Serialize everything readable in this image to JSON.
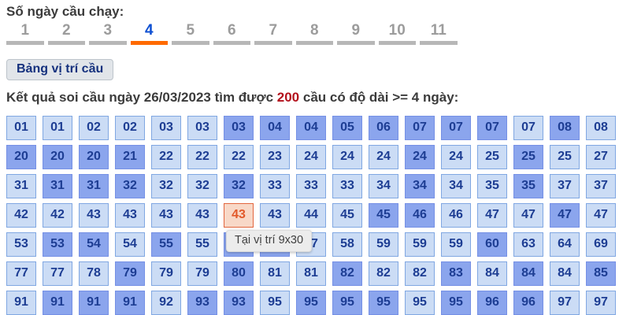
{
  "header": {
    "label": "Số ngày cầu chạy:"
  },
  "tabs": {
    "items": [
      "1",
      "2",
      "3",
      "4",
      "5",
      "6",
      "7",
      "8",
      "9",
      "10",
      "11"
    ],
    "active": "4",
    "active_text_color": "#0d4fd2",
    "active_underline_color": "#ff6a00",
    "inactive_text_color": "#9c9c9c",
    "inactive_underline_color": "#b7b7b7"
  },
  "toolbar": {
    "position_table_button_label": "Bảng vị trí cầu"
  },
  "result_line": {
    "prefix": "Kết quả soi cầu ngày 26/03/2023 tìm được ",
    "count": "200",
    "suffix": " cầu có độ dài >= 4 ngày:",
    "count_color": "#b3111c"
  },
  "tooltip": {
    "text": "Tại vị trí 9x30",
    "anchor_value": "43",
    "anchor_position": "9x30"
  },
  "colors": {
    "cell_light_bg": "#cbdcf5",
    "cell_light_border": "#80a7e2",
    "cell_dark_bg": "#8ba5ed",
    "cell_dark_border": "#7590e5",
    "cell_text": "#1d3d93",
    "cell_highlight_bg": "#f8d8c7",
    "cell_highlight_border": "#e2663e",
    "cell_highlight_text": "#e2592a"
  },
  "grid": {
    "rows": [
      [
        {
          "v": "01",
          "s": "l"
        },
        {
          "v": "01",
          "s": "l"
        },
        {
          "v": "02",
          "s": "l"
        },
        {
          "v": "02",
          "s": "l"
        },
        {
          "v": "03",
          "s": "l"
        },
        {
          "v": "03",
          "s": "l"
        },
        {
          "v": "03",
          "s": "d"
        },
        {
          "v": "04",
          "s": "d"
        },
        {
          "v": "04",
          "s": "d"
        },
        {
          "v": "05",
          "s": "d"
        },
        {
          "v": "06",
          "s": "d"
        },
        {
          "v": "07",
          "s": "d"
        },
        {
          "v": "07",
          "s": "d"
        },
        {
          "v": "07",
          "s": "d"
        },
        {
          "v": "07",
          "s": "l"
        },
        {
          "v": "08",
          "s": "d"
        },
        {
          "v": "08",
          "s": "l"
        }
      ],
      [
        {
          "v": "20",
          "s": "d"
        },
        {
          "v": "20",
          "s": "d"
        },
        {
          "v": "20",
          "s": "d"
        },
        {
          "v": "21",
          "s": "d"
        },
        {
          "v": "22",
          "s": "l"
        },
        {
          "v": "22",
          "s": "l"
        },
        {
          "v": "22",
          "s": "l"
        },
        {
          "v": "23",
          "s": "l"
        },
        {
          "v": "24",
          "s": "l"
        },
        {
          "v": "24",
          "s": "l"
        },
        {
          "v": "24",
          "s": "l"
        },
        {
          "v": "24",
          "s": "d"
        },
        {
          "v": "24",
          "s": "l"
        },
        {
          "v": "25",
          "s": "l"
        },
        {
          "v": "25",
          "s": "d"
        },
        {
          "v": "25",
          "s": "l"
        },
        {
          "v": "27",
          "s": "l"
        }
      ],
      [
        {
          "v": "31",
          "s": "l"
        },
        {
          "v": "31",
          "s": "d"
        },
        {
          "v": "31",
          "s": "d"
        },
        {
          "v": "32",
          "s": "d"
        },
        {
          "v": "32",
          "s": "l"
        },
        {
          "v": "32",
          "s": "l"
        },
        {
          "v": "32",
          "s": "d"
        },
        {
          "v": "33",
          "s": "l"
        },
        {
          "v": "33",
          "s": "l"
        },
        {
          "v": "33",
          "s": "l"
        },
        {
          "v": "34",
          "s": "l"
        },
        {
          "v": "34",
          "s": "d"
        },
        {
          "v": "34",
          "s": "l"
        },
        {
          "v": "35",
          "s": "l"
        },
        {
          "v": "35",
          "s": "d"
        },
        {
          "v": "37",
          "s": "l"
        },
        {
          "v": "37",
          "s": "l"
        }
      ],
      [
        {
          "v": "42",
          "s": "l"
        },
        {
          "v": "42",
          "s": "l"
        },
        {
          "v": "43",
          "s": "l"
        },
        {
          "v": "43",
          "s": "l"
        },
        {
          "v": "43",
          "s": "l"
        },
        {
          "v": "43",
          "s": "l"
        },
        {
          "v": "43",
          "s": "h"
        },
        {
          "v": "43",
          "s": "l"
        },
        {
          "v": "44",
          "s": "l"
        },
        {
          "v": "45",
          "s": "l"
        },
        {
          "v": "45",
          "s": "d"
        },
        {
          "v": "46",
          "s": "d"
        },
        {
          "v": "46",
          "s": "l"
        },
        {
          "v": "47",
          "s": "l"
        },
        {
          "v": "47",
          "s": "l"
        },
        {
          "v": "47",
          "s": "d"
        },
        {
          "v": "47",
          "s": "l"
        }
      ],
      [
        {
          "v": "53",
          "s": "l"
        },
        {
          "v": "53",
          "s": "d"
        },
        {
          "v": "54",
          "s": "d"
        },
        {
          "v": "54",
          "s": "l"
        },
        {
          "v": "55",
          "s": "d"
        },
        {
          "v": "55",
          "s": "l"
        },
        {
          "v": "55",
          "s": "d"
        },
        {
          "v": "56",
          "s": "d"
        },
        {
          "v": "57",
          "s": "l"
        },
        {
          "v": "58",
          "s": "l"
        },
        {
          "v": "59",
          "s": "l"
        },
        {
          "v": "59",
          "s": "l"
        },
        {
          "v": "59",
          "s": "l"
        },
        {
          "v": "60",
          "s": "d"
        },
        {
          "v": "63",
          "s": "l"
        },
        {
          "v": "64",
          "s": "l"
        },
        {
          "v": "69",
          "s": "l"
        }
      ],
      [
        {
          "v": "77",
          "s": "l"
        },
        {
          "v": "77",
          "s": "l"
        },
        {
          "v": "78",
          "s": "l"
        },
        {
          "v": "79",
          "s": "d"
        },
        {
          "v": "79",
          "s": "l"
        },
        {
          "v": "79",
          "s": "l"
        },
        {
          "v": "80",
          "s": "d"
        },
        {
          "v": "81",
          "s": "l"
        },
        {
          "v": "81",
          "s": "l"
        },
        {
          "v": "82",
          "s": "d"
        },
        {
          "v": "82",
          "s": "l"
        },
        {
          "v": "82",
          "s": "l"
        },
        {
          "v": "83",
          "s": "d"
        },
        {
          "v": "84",
          "s": "l"
        },
        {
          "v": "84",
          "s": "d"
        },
        {
          "v": "84",
          "s": "l"
        },
        {
          "v": "85",
          "s": "d"
        }
      ],
      [
        {
          "v": "91",
          "s": "l"
        },
        {
          "v": "91",
          "s": "d"
        },
        {
          "v": "91",
          "s": "d"
        },
        {
          "v": "91",
          "s": "d"
        },
        {
          "v": "92",
          "s": "l"
        },
        {
          "v": "93",
          "s": "d"
        },
        {
          "v": "93",
          "s": "d"
        },
        {
          "v": "95",
          "s": "l"
        },
        {
          "v": "95",
          "s": "d"
        },
        {
          "v": "95",
          "s": "d"
        },
        {
          "v": "95",
          "s": "d"
        },
        {
          "v": "95",
          "s": "l"
        },
        {
          "v": "95",
          "s": "d"
        },
        {
          "v": "96",
          "s": "d"
        },
        {
          "v": "96",
          "s": "d"
        },
        {
          "v": "97",
          "s": "l"
        },
        {
          "v": "97",
          "s": "l"
        }
      ]
    ]
  }
}
